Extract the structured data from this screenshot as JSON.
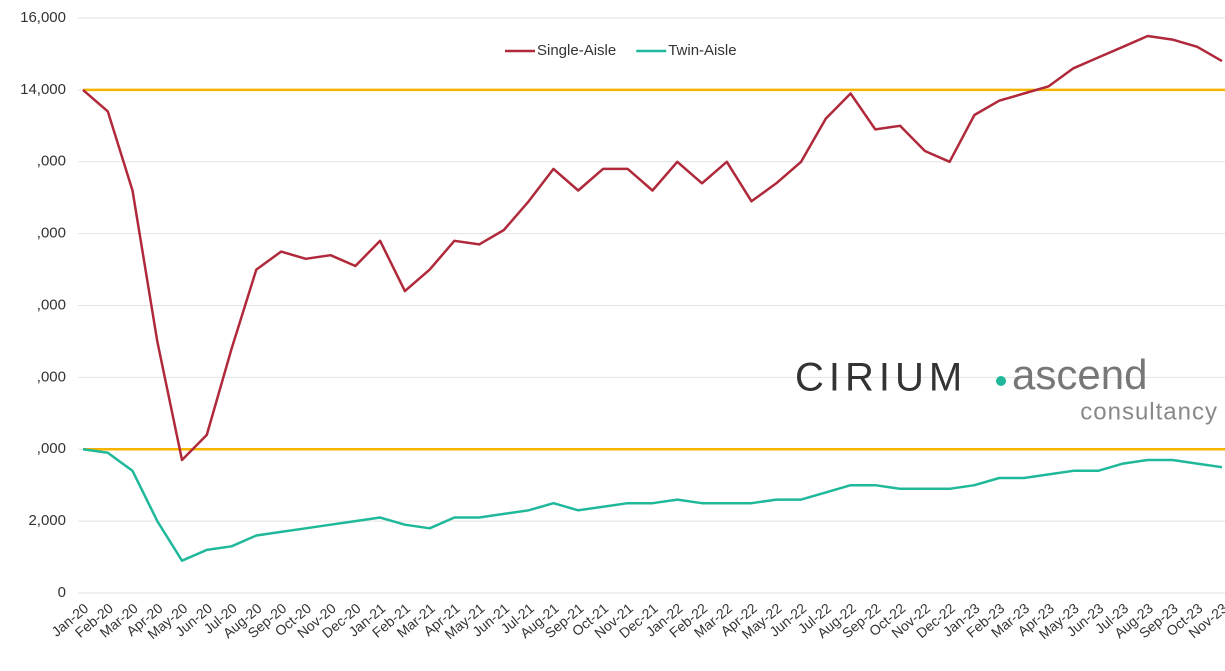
{
  "chart_data": {
    "type": "line",
    "categories": [
      "Jan-20",
      "Feb-20",
      "Mar-20",
      "Apr-20",
      "May-20",
      "Jun-20",
      "Jul-20",
      "Aug-20",
      "Sep-20",
      "Oct-20",
      "Nov-20",
      "Dec-20",
      "Jan-21",
      "Feb-21",
      "Mar-21",
      "Apr-21",
      "May-21",
      "Jun-21",
      "Jul-21",
      "Aug-21",
      "Sep-21",
      "Oct-21",
      "Nov-21",
      "Dec-21",
      "Jan-22",
      "Feb-22",
      "Mar-22",
      "Apr-22",
      "May-22",
      "Jun-22",
      "Jul-22",
      "Aug-22",
      "Sep-22",
      "Oct-22",
      "Nov-22",
      "Dec-22",
      "Jan-23",
      "Feb-23",
      "Mar-23",
      "Apr-23",
      "May-23",
      "Jun-23",
      "Jul-23",
      "Aug-23",
      "Sep-23",
      "Oct-23",
      "Nov-23"
    ],
    "series": [
      {
        "name": "Single-Aisle",
        "color": "#b0293a",
        "values": [
          14000,
          13400,
          11200,
          7000,
          3700,
          4400,
          6800,
          9000,
          9500,
          9300,
          9400,
          9100,
          9800,
          8400,
          9000,
          9800,
          9700,
          10100,
          10900,
          11800,
          11200,
          11800,
          11800,
          11200,
          12000,
          11400,
          12000,
          10900,
          11400,
          12000,
          13200,
          13900,
          12900,
          13000,
          12300,
          12000,
          13300,
          13700,
          13900,
          14100,
          14600,
          14900,
          15200,
          15500,
          15400,
          15200,
          14800
        ]
      },
      {
        "name": "Twin-Aisle",
        "color": "#1fb89a",
        "values": [
          4000,
          3900,
          3400,
          2000,
          900,
          1200,
          1300,
          1600,
          1700,
          1800,
          1900,
          2000,
          2100,
          1900,
          1800,
          2100,
          2100,
          2200,
          2300,
          2500,
          2300,
          2400,
          2500,
          2500,
          2600,
          2500,
          2500,
          2500,
          2600,
          2600,
          2800,
          3000,
          3000,
          2900,
          2900,
          2900,
          3000,
          3200,
          3200,
          3300,
          3400,
          3400,
          3600,
          3700,
          3700,
          3600,
          3500
        ]
      }
    ],
    "ylim": [
      0,
      16000
    ],
    "yticks": [
      0,
      {
        "value": 2000,
        "label": "2,000"
      },
      {
        "value": 4000,
        "label": ",000"
      },
      {
        "value": 6000,
        "label": ",000"
      },
      {
        "value": 8000,
        "label": ",000"
      },
      {
        "value": 10000,
        "label": ",000"
      },
      {
        "value": 12000,
        "label": ",000"
      },
      {
        "value": 14000,
        "label": "14,000"
      },
      {
        "value": 16000,
        "label": "16,000"
      }
    ],
    "grid": true,
    "legend": "top",
    "reference_lines": [
      14000,
      4000
    ],
    "reference_color": "#f5b400",
    "logo": {
      "brand": "CIRIUM",
      "product": "ascend",
      "tagline": "consultancy"
    }
  }
}
